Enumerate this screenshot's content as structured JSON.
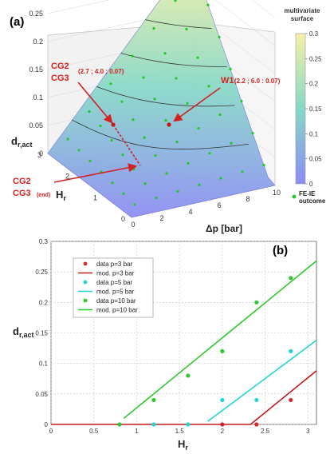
{
  "chart_data": [
    {
      "type": "surface",
      "panel_label": "(a)",
      "colorbar": {
        "title_line1": "multivariate",
        "title_line2": "surface",
        "min": 0,
        "max": 0.3,
        "ticks": [
          "0",
          "0.05",
          "0.1",
          "0.15",
          "0.2",
          "0.25",
          "0.3"
        ],
        "colors": [
          "#8c8cf5",
          "#86d8c7",
          "#f7f1a3"
        ]
      },
      "axes": {
        "z_label": "d",
        "z_label_sub": "r,act",
        "z_range": [
          0,
          0.3
        ],
        "z_ticks": [
          "0",
          "0.05",
          "0.1",
          "0.15",
          "0.2",
          "0.25",
          "0.3"
        ],
        "hr_label": "H",
        "hr_label_sub": "r",
        "hr_range": [
          0,
          3
        ],
        "hr_ticks": [
          "0",
          "1",
          "2",
          "3"
        ],
        "dp_label": "Δp [bar]",
        "dp_range": [
          0,
          10
        ],
        "dp_ticks": [
          "0",
          "2",
          "4",
          "6",
          "8",
          "10"
        ]
      },
      "contour_levels": [
        0.05,
        0.1,
        0.15,
        0.2,
        0.25
      ],
      "legend": {
        "label_line1": "FE-IE",
        "label_line2": "outcome",
        "color": "#22c922"
      },
      "annotations": [
        {
          "name": "cg2-cg3",
          "line1": "CG2",
          "line2": "CG3",
          "coords": "(2.7 ; 4.0 ; 0.07)",
          "hr": 2.7,
          "dp": 4.0,
          "d": 0.07
        },
        {
          "name": "w1",
          "text": "W1",
          "coords": "(2.2 ; 6.0 : 0.07)",
          "hr": 2.2,
          "dp": 6.0,
          "d": 0.07
        },
        {
          "name": "cg2-cg3-end",
          "line1": "CG2",
          "line2": "CG3",
          "sub": "(end)",
          "hr": 2.7,
          "dp": 4.0,
          "d": 0.0
        }
      ],
      "annotation_color": "#d42020"
    },
    {
      "type": "line",
      "panel_label": "(b)",
      "xlabel": "H",
      "xlabel_sub": "r",
      "ylabel": "d",
      "ylabel_sub": "r,act",
      "xlim": [
        0,
        3.1
      ],
      "ylim": [
        0,
        0.3
      ],
      "xticks": [
        0,
        0.5,
        1,
        1.5,
        2,
        2.5,
        3
      ],
      "xtick_labels": [
        "0",
        "0.5",
        "1",
        "1.5",
        "2",
        "2.5",
        "3"
      ],
      "yticks": [
        0,
        0.05,
        0.1,
        0.15,
        0.2,
        0.25,
        0.3
      ],
      "ytick_labels": [
        "0",
        "0.05",
        "0.1",
        "0.15",
        "0.2",
        "0.25",
        "0.3"
      ],
      "grid": true,
      "legend_position": "top-left",
      "series": [
        {
          "name": "data  p=3 bar",
          "kind": "points",
          "color": "#d42a2a",
          "x": [
            2.0,
            2.4,
            2.8
          ],
          "y": [
            0.0,
            0.0,
            0.04
          ]
        },
        {
          "name": "mod. p=3 bar",
          "kind": "line",
          "color": "#c41a1a",
          "x": [
            0,
            2.33,
            3.1
          ],
          "y": [
            0,
            0,
            0.088
          ]
        },
        {
          "name": "data  p=5 bar",
          "kind": "points",
          "color": "#22d4d4",
          "x": [
            1.2,
            1.6,
            2.0,
            2.4,
            2.8
          ],
          "y": [
            0.0,
            0.0,
            0.04,
            0.04,
            0.12
          ]
        },
        {
          "name": "mod. p=5 bar",
          "kind": "line",
          "color": "#22d4d4",
          "x": [
            1.83,
            3.1
          ],
          "y": [
            0.005,
            0.138
          ]
        },
        {
          "name": "data  p=10 bar",
          "kind": "points",
          "color": "#2ec82e",
          "x": [
            0.8,
            1.2,
            1.6,
            2.0,
            2.4,
            2.8
          ],
          "y": [
            0.0,
            0.04,
            0.08,
            0.12,
            0.2,
            0.24
          ]
        },
        {
          "name": "mod. p=10 bar",
          "kind": "line",
          "color": "#2ec82e",
          "x": [
            0.85,
            3.1
          ],
          "y": [
            0.01,
            0.268
          ]
        }
      ]
    }
  ]
}
